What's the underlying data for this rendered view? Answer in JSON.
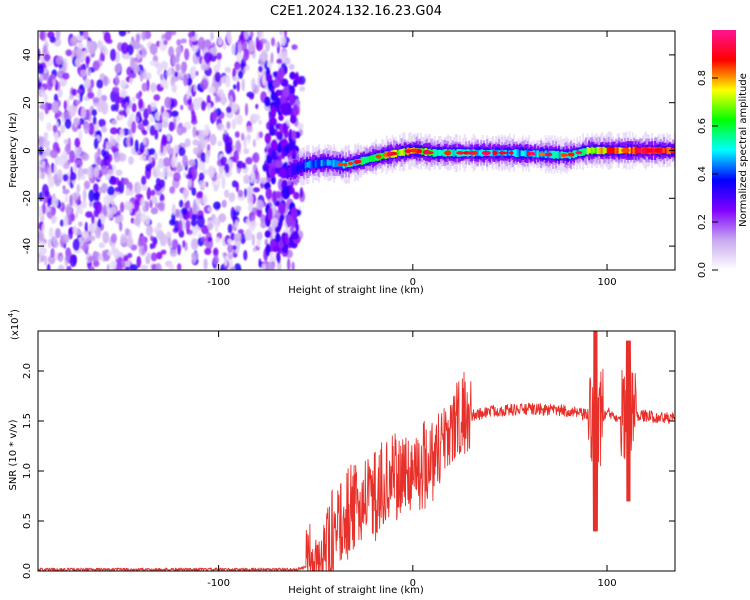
{
  "figure_title": "C2E1.2024.132.16.23.G04",
  "chart_data": [
    {
      "type": "heatmap",
      "title": "C2E1.2024.132.16.23.G04",
      "xlabel": "Height of straight line (km)",
      "ylabel": "Frequency (Hz)",
      "xlim": [
        -193,
        135
      ],
      "ylim": [
        -50,
        50
      ],
      "x_ticks": [
        -100,
        0,
        100
      ],
      "y_ticks": [
        -40,
        -20,
        0,
        20,
        40
      ],
      "tick_labels_x": [
        "-100",
        "0",
        "100"
      ],
      "tick_labels_y": [
        "-40",
        "-20",
        "0",
        "20",
        "40"
      ],
      "colorbar": {
        "label": "Normalized spectral amplitude",
        "range": [
          0.0,
          1.0
        ],
        "ticks": [
          0.0,
          0.2,
          0.4,
          0.6,
          0.8
        ],
        "tick_labels": [
          "0.0",
          "0.2",
          "0.4",
          "0.6",
          "0.8"
        ],
        "colors": [
          "#ffffff",
          "#c8a8f0",
          "#8000ff",
          "#0000ff",
          "#00ffff",
          "#00ff00",
          "#ffff00",
          "#ff0000",
          "#ff1493"
        ]
      },
      "noise_region": {
        "x_range": [
          -193,
          -62
        ],
        "amplitude_range": [
          0.05,
          0.35
        ]
      },
      "signal_ridge": {
        "x": [
          -65,
          -55,
          -45,
          -35,
          -25,
          -15,
          -8,
          0,
          10,
          25,
          50,
          80,
          90,
          100,
          110,
          135
        ],
        "frequency": [
          -9,
          -6,
          -5,
          -6,
          -4,
          -2,
          -1,
          0,
          -1,
          -1,
          -1,
          -2,
          0,
          0,
          0,
          0
        ],
        "amplitude": [
          0.3,
          0.45,
          0.5,
          0.55,
          0.6,
          0.7,
          0.75,
          0.8,
          0.65,
          0.55,
          0.5,
          0.55,
          0.7,
          0.85,
          0.9,
          0.95
        ]
      }
    },
    {
      "type": "line",
      "xlabel": "Height of straight line (km)",
      "ylabel": "SNR (10 * v/v)",
      "y_multiplier": "(x10",
      "y_multiplier_exp": "4",
      "y_multiplier_close": ")",
      "xlim": [
        -193,
        135
      ],
      "ylim": [
        0,
        2.4
      ],
      "x_ticks": [
        -100,
        0,
        100
      ],
      "y_ticks": [
        0.0,
        0.5,
        1.0,
        1.5,
        2.0
      ],
      "tick_labels_x": [
        "-100",
        "0",
        "100"
      ],
      "tick_labels_y": [
        "0.0",
        "0.5",
        "1.0",
        "1.5",
        "2.0"
      ],
      "line_color": "#e8302a",
      "series": [
        {
          "name": "SNR",
          "x": [
            -193,
            -150,
            -100,
            -60,
            -50,
            -45,
            -40,
            -35,
            -30,
            -25,
            -20,
            -15,
            -10,
            -5,
            0,
            5,
            10,
            15,
            20,
            30,
            40,
            60,
            80,
            90,
            95,
            100,
            105,
            110,
            120,
            135
          ],
          "values": [
            0.0,
            0.0,
            0.0,
            0.0,
            0.05,
            0.2,
            0.4,
            0.55,
            0.6,
            0.7,
            0.75,
            0.85,
            0.9,
            0.95,
            1.0,
            1.05,
            1.15,
            1.3,
            1.45,
            1.55,
            1.6,
            1.62,
            1.6,
            1.55,
            1.5,
            1.58,
            1.55,
            1.58,
            1.55,
            1.52
          ]
        }
      ],
      "spikes": [
        {
          "x": 94,
          "min": 0.4,
          "max": 2.4
        },
        {
          "x": 111,
          "min": 0.7,
          "max": 2.3
        }
      ]
    }
  ]
}
